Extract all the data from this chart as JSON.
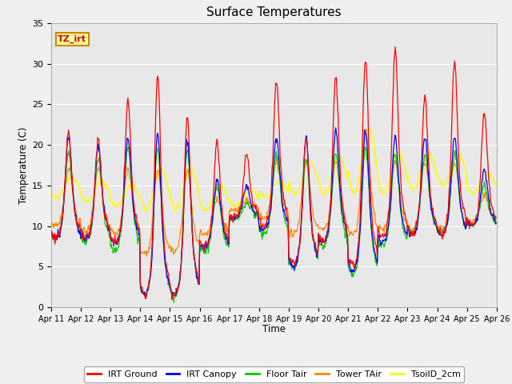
{
  "title": "Surface Temperatures",
  "xlabel": "Time",
  "ylabel": "Temperature (C)",
  "ylim": [
    0,
    35
  ],
  "xlim_days": 15,
  "plot_bg": "#e8e8e8",
  "fig_bg": "#f0f0f0",
  "legend_entries": [
    "IRT Ground",
    "IRT Canopy",
    "Floor Tair",
    "Tower TAir",
    "TsoilD_2cm"
  ],
  "legend_colors": [
    "#ff0000",
    "#0000ff",
    "#00cc00",
    "#ff8800",
    "#ffff00"
  ],
  "annotation_text": "TZ_irt",
  "annotation_bg": "#ffff99",
  "annotation_border": "#cc8800",
  "xtick_labels": [
    "Apr 11",
    "Apr 12",
    "Apr 13",
    "Apr 14",
    "Apr 15",
    "Apr 16",
    "Apr 17",
    "Apr 18",
    "Apr 19",
    "Apr 20",
    "Apr 21",
    "Apr 22",
    "Apr 23",
    "Apr 24",
    "Apr 25",
    "Apr 26"
  ],
  "ytick_labels": [
    0,
    5,
    10,
    15,
    20,
    25,
    30,
    35
  ],
  "pts_per_day": 48,
  "num_days": 15,
  "grid_color": "#ffffff",
  "spine_color": "#aaaaaa"
}
